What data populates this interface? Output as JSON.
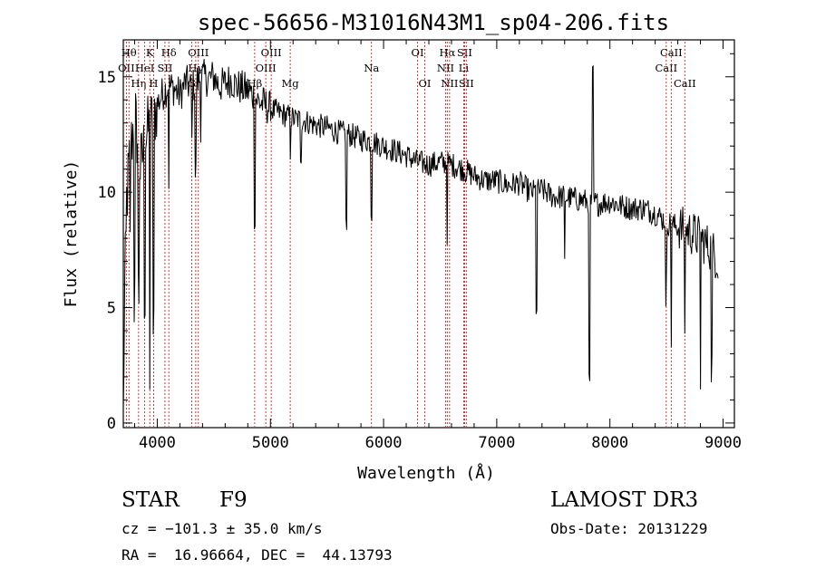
{
  "chart_data": {
    "type": "line",
    "title": "spec-56656-M31016N43M1_sp04-206.fits",
    "xlabel": "Wavelength (Å)",
    "ylabel": "Flux (relative)",
    "xlim": [
      3700,
      9100
    ],
    "ylim": [
      -0.2,
      16.6
    ],
    "xticks": [
      4000,
      5000,
      6000,
      7000,
      8000,
      9000
    ],
    "yticks": [
      0,
      5,
      10,
      15
    ],
    "grid": false,
    "series": [
      {
        "name": "spectrum",
        "anchors": [
          [
            3700,
            0.2
          ],
          [
            3720,
            9
          ],
          [
            3750,
            11
          ],
          [
            3800,
            13.5
          ],
          [
            3850,
            11
          ],
          [
            3900,
            12.5
          ],
          [
            3950,
            13
          ],
          [
            4000,
            13.8
          ],
          [
            4050,
            14.3
          ],
          [
            4100,
            14.6
          ],
          [
            4150,
            14.5
          ],
          [
            4200,
            14.2
          ],
          [
            4250,
            14.8
          ],
          [
            4300,
            14.5
          ],
          [
            4350,
            14.8
          ],
          [
            4400,
            15.0
          ],
          [
            4450,
            14.9
          ],
          [
            4500,
            15.0
          ],
          [
            4550,
            14.6
          ],
          [
            4600,
            14.7
          ],
          [
            4650,
            14.9
          ],
          [
            4700,
            14.6
          ],
          [
            4750,
            14.5
          ],
          [
            4800,
            14.4
          ],
          [
            4850,
            14.2
          ],
          [
            4900,
            13.9
          ],
          [
            4950,
            13.8
          ],
          [
            5000,
            13.6
          ],
          [
            5100,
            13.4
          ],
          [
            5200,
            13.2
          ],
          [
            5300,
            13.1
          ],
          [
            5400,
            12.9
          ],
          [
            5500,
            12.8
          ],
          [
            5600,
            12.6
          ],
          [
            5700,
            12.5
          ],
          [
            5800,
            12.3
          ],
          [
            5900,
            12.2
          ],
          [
            6000,
            12.0
          ],
          [
            6100,
            11.8
          ],
          [
            6200,
            11.6
          ],
          [
            6300,
            11.3
          ],
          [
            6400,
            11.2
          ],
          [
            6500,
            11.3
          ],
          [
            6600,
            11.2
          ],
          [
            6700,
            11.0
          ],
          [
            6800,
            10.7
          ],
          [
            6900,
            10.5
          ],
          [
            7000,
            10.5
          ],
          [
            7100,
            10.3
          ],
          [
            7200,
            10.4
          ],
          [
            7300,
            10.0
          ],
          [
            7400,
            10.1
          ],
          [
            7500,
            9.8
          ],
          [
            7600,
            9.8
          ],
          [
            7700,
            9.7
          ],
          [
            7800,
            9.6
          ],
          [
            7900,
            9.5
          ],
          [
            8000,
            9.6
          ],
          [
            8100,
            9.4
          ],
          [
            8200,
            9.3
          ],
          [
            8300,
            9.3
          ],
          [
            8400,
            9.1
          ],
          [
            8500,
            8.7
          ],
          [
            8600,
            8.5
          ],
          [
            8700,
            8.3
          ],
          [
            8800,
            8.0
          ],
          [
            8900,
            7.5
          ],
          [
            8960,
            7.0
          ]
        ],
        "dips": [
          [
            3720,
            1.5
          ],
          [
            3760,
            4.0
          ],
          [
            3800,
            8.0
          ],
          [
            3835,
            6.0
          ],
          [
            3890,
            6.5
          ],
          [
            3934,
            10.5
          ],
          [
            3968,
            9.5
          ],
          [
            4102,
            4.0
          ],
          [
            4305,
            2.5
          ],
          [
            4340,
            4.0
          ],
          [
            4384,
            2.0
          ],
          [
            4861,
            5.0
          ],
          [
            5175,
            1.5
          ],
          [
            5270,
            1.5
          ],
          [
            5670,
            4.0
          ],
          [
            5893,
            3.0
          ],
          [
            6563,
            3.0
          ],
          [
            7350,
            5.0
          ],
          [
            7600,
            3.0
          ],
          [
            7820,
            8.0
          ],
          [
            8498,
            4.0
          ],
          [
            8542,
            5.0
          ],
          [
            8662,
            5.0
          ],
          [
            8800,
            6.0
          ],
          [
            8900,
            5.0
          ]
        ],
        "spikes": [
          [
            7850,
            5.5
          ],
          [
            8500,
            1.5
          ]
        ]
      }
    ],
    "lines": [
      {
        "name": "OII",
        "wl": 3727,
        "row": 2
      },
      {
        "name": "Hθ",
        "wl": 3750,
        "row": 1
      },
      {
        "name": "Hη",
        "wl": 3835,
        "row": 3
      },
      {
        "name": "HeI",
        "wl": 3889,
        "row": 2
      },
      {
        "name": "K",
        "wl": 3934,
        "row": 1
      },
      {
        "name": "SII",
        "wl": 4068,
        "row": 2
      },
      {
        "name": "H",
        "wl": 3968,
        "row": 3
      },
      {
        "name": "Hδ",
        "wl": 4102,
        "row": 1
      },
      {
        "name": "OIII",
        "wl": 4363,
        "row": 1
      },
      {
        "name": "Hγ",
        "wl": 4340,
        "row": 2
      },
      {
        "name": "G",
        "wl": 4305,
        "row": 3
      },
      {
        "name": "Hβ",
        "wl": 4861,
        "row": 3
      },
      {
        "name": "OIII",
        "wl": 4959,
        "row": 2
      },
      {
        "name": "OIII",
        "wl": 5007,
        "row": 1
      },
      {
        "name": "Mg",
        "wl": 5175,
        "row": 3
      },
      {
        "name": "Na",
        "wl": 5893,
        "row": 2
      },
      {
        "name": "OI",
        "wl": 6300,
        "row": 1
      },
      {
        "name": "OI",
        "wl": 6364,
        "row": 3
      },
      {
        "name": "NII",
        "wl": 6548,
        "row": 2
      },
      {
        "name": "Hα",
        "wl": 6563,
        "row": 1
      },
      {
        "name": "NII",
        "wl": 6583,
        "row": 3
      },
      {
        "name": "SII",
        "wl": 6716,
        "row": 1
      },
      {
        "name": "Li",
        "wl": 6708,
        "row": 2
      },
      {
        "name": "SII",
        "wl": 6731,
        "row": 3
      },
      {
        "name": "CaII",
        "wl": 8498,
        "row": 2
      },
      {
        "name": "CaII",
        "wl": 8542,
        "row": 1
      },
      {
        "name": "CaII",
        "wl": 8662,
        "row": 3
      }
    ]
  },
  "info": {
    "class_label": "STAR",
    "subclass": "F9",
    "survey": "LAMOST DR3",
    "velocity": "cz = −101.3 ± 35.0 km/s",
    "obs_date": "Obs-Date: 20131229",
    "coords": "RA =  16.96664, DEC =  44.13793"
  }
}
